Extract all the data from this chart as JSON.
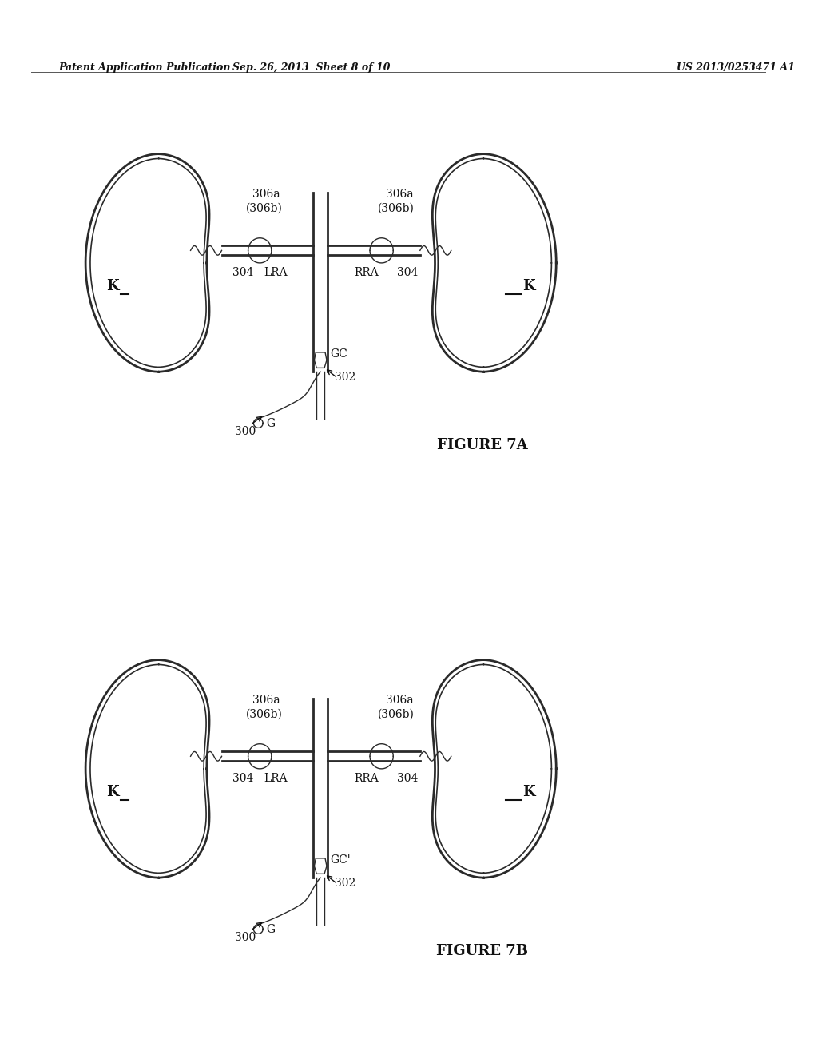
{
  "bg_color": "#ffffff",
  "header_left": "Patent Application Publication",
  "header_center": "Sep. 26, 2013  Sheet 8 of 10",
  "header_right": "US 2013/0253471 A1",
  "figure_7a_caption": "FIGURE 7A",
  "figure_7b_caption": "FIGURE 7B",
  "label_K": "K",
  "label_LRA": "LRA",
  "label_RRA": "RRA",
  "label_GC_a": "GC",
  "label_GC_b": "GC'",
  "label_304": "304",
  "label_302": "302",
  "label_300": "300",
  "label_G": "G",
  "label_306a": "306a",
  "label_306b": "306b"
}
